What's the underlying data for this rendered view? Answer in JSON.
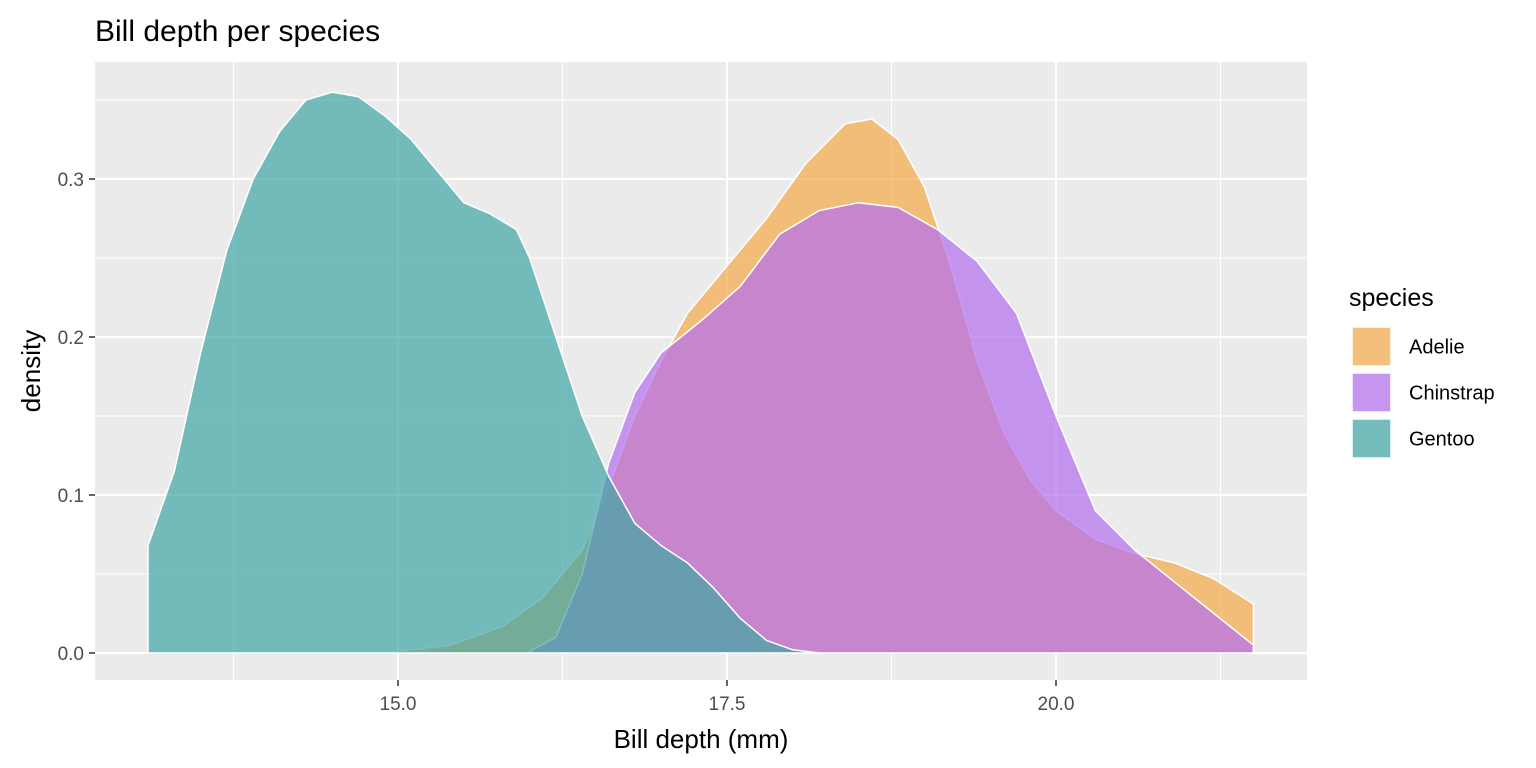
{
  "chart_data": {
    "type": "area",
    "title": "Bill depth per species",
    "xlabel": "Bill depth (mm)",
    "ylabel": "density",
    "xlim": [
      13.1,
      21.5
    ],
    "ylim": [
      0.0,
      0.355
    ],
    "x_ticks": [
      {
        "value": 15.0,
        "label": "15.0"
      },
      {
        "value": 17.5,
        "label": "17.5"
      },
      {
        "value": 20.0,
        "label": "20.0"
      }
    ],
    "y_ticks": [
      {
        "value": 0.0,
        "label": "0.0"
      },
      {
        "value": 0.1,
        "label": "0.1"
      },
      {
        "value": 0.2,
        "label": "0.2"
      },
      {
        "value": 0.3,
        "label": "0.3"
      }
    ],
    "grid": true,
    "legend": {
      "title": "species",
      "position": "right"
    },
    "series": [
      {
        "name": "Adelie",
        "color": "#f4a948",
        "points": [
          [
            15.0,
            0.001
          ],
          [
            15.4,
            0.005
          ],
          [
            15.8,
            0.017
          ],
          [
            16.1,
            0.035
          ],
          [
            16.4,
            0.065
          ],
          [
            16.6,
            0.105
          ],
          [
            16.8,
            0.15
          ],
          [
            17.0,
            0.185
          ],
          [
            17.2,
            0.215
          ],
          [
            17.5,
            0.245
          ],
          [
            17.8,
            0.275
          ],
          [
            18.1,
            0.31
          ],
          [
            18.4,
            0.335
          ],
          [
            18.6,
            0.338
          ],
          [
            18.8,
            0.325
          ],
          [
            19.0,
            0.295
          ],
          [
            19.2,
            0.245
          ],
          [
            19.4,
            0.185
          ],
          [
            19.6,
            0.14
          ],
          [
            19.8,
            0.11
          ],
          [
            20.0,
            0.09
          ],
          [
            20.3,
            0.072
          ],
          [
            20.6,
            0.063
          ],
          [
            20.9,
            0.057
          ],
          [
            21.2,
            0.047
          ],
          [
            21.5,
            0.031
          ]
        ]
      },
      {
        "name": "Chinstrap",
        "color": "#b36ef0",
        "points": [
          [
            16.0,
            0.001
          ],
          [
            16.2,
            0.01
          ],
          [
            16.4,
            0.05
          ],
          [
            16.6,
            0.12
          ],
          [
            16.8,
            0.165
          ],
          [
            17.0,
            0.19
          ],
          [
            17.3,
            0.21
          ],
          [
            17.6,
            0.232
          ],
          [
            17.9,
            0.265
          ],
          [
            18.2,
            0.28
          ],
          [
            18.5,
            0.285
          ],
          [
            18.8,
            0.282
          ],
          [
            19.1,
            0.268
          ],
          [
            19.4,
            0.248
          ],
          [
            19.7,
            0.215
          ],
          [
            20.0,
            0.15
          ],
          [
            20.3,
            0.09
          ],
          [
            20.6,
            0.065
          ],
          [
            20.9,
            0.045
          ],
          [
            21.2,
            0.025
          ],
          [
            21.5,
            0.005
          ]
        ]
      },
      {
        "name": "Gentoo",
        "color": "#40a5a5",
        "points": [
          [
            13.1,
            0.068
          ],
          [
            13.3,
            0.115
          ],
          [
            13.5,
            0.19
          ],
          [
            13.7,
            0.255
          ],
          [
            13.9,
            0.3
          ],
          [
            14.1,
            0.33
          ],
          [
            14.3,
            0.35
          ],
          [
            14.5,
            0.355
          ],
          [
            14.7,
            0.352
          ],
          [
            14.9,
            0.34
          ],
          [
            15.1,
            0.325
          ],
          [
            15.3,
            0.305
          ],
          [
            15.5,
            0.285
          ],
          [
            15.7,
            0.278
          ],
          [
            15.9,
            0.268
          ],
          [
            16.0,
            0.25
          ],
          [
            16.2,
            0.2
          ],
          [
            16.4,
            0.15
          ],
          [
            16.6,
            0.112
          ],
          [
            16.8,
            0.082
          ],
          [
            17.0,
            0.068
          ],
          [
            17.2,
            0.057
          ],
          [
            17.4,
            0.041
          ],
          [
            17.6,
            0.022
          ],
          [
            17.8,
            0.008
          ],
          [
            18.0,
            0.002
          ],
          [
            18.2,
            0.0
          ]
        ]
      }
    ]
  }
}
